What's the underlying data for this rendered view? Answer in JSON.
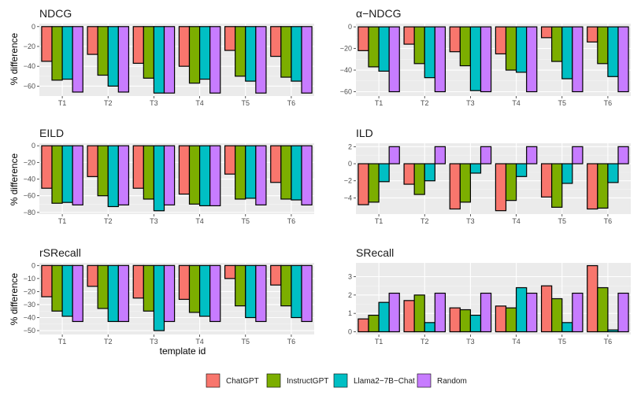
{
  "figure": {
    "x_axis_title": "template id",
    "y_axis_title": "% difference"
  },
  "legend": {
    "items": [
      {
        "label": "ChatGPT",
        "color": "#F8766D"
      },
      {
        "label": "InstructGPT",
        "color": "#7CAE00"
      },
      {
        "label": "Llama2−7B−Chat",
        "color": "#00BFC4"
      },
      {
        "label": "Random",
        "color": "#C77CFF"
      }
    ]
  },
  "chart_data": [
    {
      "type": "bar",
      "title": "NDCG",
      "xlabel": "template id",
      "ylabel": "% difference",
      "categories": [
        "T1",
        "T2",
        "T3",
        "T4",
        "T5",
        "T6"
      ],
      "ylim": [
        -70,
        3
      ],
      "yticks": [
        0,
        -20,
        -40,
        -60
      ],
      "ytick_labels": [
        "0",
        "−20",
        "−40",
        "−60"
      ],
      "series": [
        {
          "name": "ChatGPT",
          "values": [
            -35,
            -28,
            -37,
            -40,
            -24,
            -30
          ]
        },
        {
          "name": "InstructGPT",
          "values": [
            -54,
            -49,
            -52,
            -57,
            -50,
            -51
          ]
        },
        {
          "name": "Llama2-7B-Chat",
          "values": [
            -53,
            -60,
            -67,
            -53,
            -55,
            -55
          ]
        },
        {
          "name": "Random",
          "values": [
            -66,
            -66,
            -67,
            -67,
            -67,
            -67
          ]
        }
      ]
    },
    {
      "type": "bar",
      "title": "α−NDCG",
      "xlabel": "template id",
      "ylabel": "% difference",
      "categories": [
        "T1",
        "T2",
        "T3",
        "T4",
        "T5",
        "T6"
      ],
      "ylim": [
        -64,
        3
      ],
      "yticks": [
        0,
        -20,
        -40,
        -60
      ],
      "ytick_labels": [
        "0",
        "−20",
        "−40",
        "−60"
      ],
      "series": [
        {
          "name": "ChatGPT",
          "values": [
            -22,
            -16,
            -23,
            -25,
            -10,
            -14
          ]
        },
        {
          "name": "InstructGPT",
          "values": [
            -37,
            -34,
            -36,
            -40,
            -32,
            -34
          ]
        },
        {
          "name": "Llama2-7B-Chat",
          "values": [
            -41,
            -47,
            -59,
            -42,
            -48,
            -46
          ]
        },
        {
          "name": "Random",
          "values": [
            -60,
            -60,
            -60,
            -60,
            -60,
            -60
          ]
        }
      ]
    },
    {
      "type": "bar",
      "title": "EILD",
      "xlabel": "template id",
      "ylabel": "% difference",
      "categories": [
        "T1",
        "T2",
        "T3",
        "T4",
        "T5",
        "T6"
      ],
      "ylim": [
        -82,
        3
      ],
      "yticks": [
        0,
        -20,
        -40,
        -60,
        -80
      ],
      "ytick_labels": [
        "0",
        "−20",
        "−40",
        "−60",
        "−80"
      ],
      "series": [
        {
          "name": "ChatGPT",
          "values": [
            -51,
            -37,
            -51,
            -58,
            -34,
            -44
          ]
        },
        {
          "name": "InstructGPT",
          "values": [
            -69,
            -60,
            -64,
            -70,
            -64,
            -64
          ]
        },
        {
          "name": "Llama2-7B-Chat",
          "values": [
            -68,
            -73,
            -78,
            -72,
            -63,
            -65
          ]
        },
        {
          "name": "Random",
          "values": [
            -71,
            -71,
            -71,
            -72,
            -71,
            -71
          ]
        }
      ]
    },
    {
      "type": "bar",
      "title": "ILD",
      "xlabel": "template id",
      "ylabel": "% difference",
      "categories": [
        "T1",
        "T2",
        "T3",
        "T4",
        "T5",
        "T6"
      ],
      "ylim": [
        -5.9,
        2.4
      ],
      "yticks": [
        2,
        0,
        -2,
        -4
      ],
      "ytick_labels": [
        "2",
        "0",
        "−2",
        "−4"
      ],
      "series": [
        {
          "name": "ChatGPT",
          "values": [
            -4.8,
            -2.4,
            -5.3,
            -5.5,
            -3.9,
            -5.3
          ]
        },
        {
          "name": "InstructGPT",
          "values": [
            -4.5,
            -3.6,
            -4.5,
            -4.3,
            -5.1,
            -5.2
          ]
        },
        {
          "name": "Llama2-7B-Chat",
          "values": [
            -2.1,
            -2.0,
            -1.1,
            -1.5,
            -2.3,
            -2.2
          ]
        },
        {
          "name": "Random",
          "values": [
            2.0,
            2.0,
            2.0,
            2.0,
            2.0,
            2.0
          ]
        }
      ]
    },
    {
      "type": "bar",
      "title": "rSRecall",
      "xlabel": "template id",
      "ylabel": "% difference",
      "categories": [
        "T1",
        "T2",
        "T3",
        "T4",
        "T5",
        "T6"
      ],
      "ylim": [
        -53,
        2
      ],
      "yticks": [
        0,
        -10,
        -20,
        -30,
        -40,
        -50
      ],
      "ytick_labels": [
        "0",
        "−10",
        "−20",
        "−30",
        "−40",
        "−50"
      ],
      "series": [
        {
          "name": "ChatGPT",
          "values": [
            -24,
            -16,
            -25,
            -26,
            -10,
            -15
          ]
        },
        {
          "name": "InstructGPT",
          "values": [
            -35,
            -33,
            -35,
            -36,
            -31,
            -31
          ]
        },
        {
          "name": "Llama2-7B-Chat",
          "values": [
            -39,
            -43,
            -50,
            -39,
            -40,
            -40
          ]
        },
        {
          "name": "Random",
          "values": [
            -43,
            -43,
            -43,
            -43,
            -43,
            -43
          ]
        }
      ]
    },
    {
      "type": "bar",
      "title": "SRecall",
      "xlabel": "template id",
      "ylabel": "% difference",
      "categories": [
        "T1",
        "T2",
        "T3",
        "T4",
        "T5",
        "T6"
      ],
      "ylim": [
        -0.15,
        3.75
      ],
      "yticks": [
        0,
        1,
        2,
        3
      ],
      "ytick_labels": [
        "0",
        "1",
        "2",
        "3"
      ],
      "series": [
        {
          "name": "ChatGPT",
          "values": [
            0.7,
            1.7,
            1.3,
            1.4,
            2.5,
            3.6
          ]
        },
        {
          "name": "InstructGPT",
          "values": [
            0.9,
            2.0,
            1.2,
            1.3,
            1.8,
            2.4
          ]
        },
        {
          "name": "Llama2-7B-Chat",
          "values": [
            1.6,
            0.5,
            0.9,
            2.4,
            0.5,
            0.1
          ]
        },
        {
          "name": "Random",
          "values": [
            2.1,
            2.1,
            2.1,
            2.1,
            2.1,
            2.1
          ]
        }
      ]
    }
  ]
}
